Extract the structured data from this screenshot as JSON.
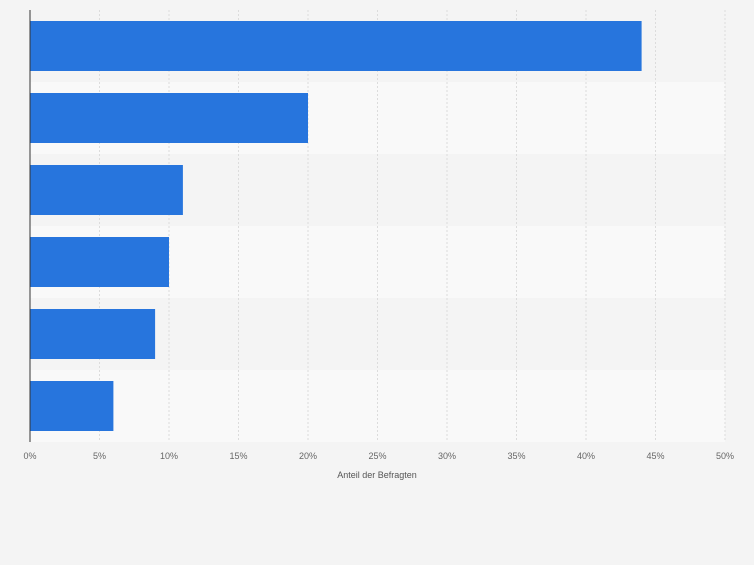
{
  "chart_data": {
    "type": "bar",
    "orientation": "horizontal",
    "categories": [
      "",
      "",
      "",
      "",
      "",
      ""
    ],
    "values": [
      44,
      20,
      11,
      10,
      9,
      6
    ],
    "title": "",
    "xlabel": "Anteil der Befragten",
    "ylabel": "",
    "xlim": [
      0,
      50
    ],
    "x_ticks": [
      0,
      5,
      10,
      15,
      20,
      25,
      30,
      35,
      40,
      45,
      50
    ],
    "x_tick_labels": [
      "0%",
      "5%",
      "10%",
      "15%",
      "20%",
      "25%",
      "30%",
      "35%",
      "40%",
      "45%",
      "50%"
    ],
    "grid": true,
    "legend": "none",
    "colors": {
      "bar": "#2775dd",
      "band_dark": "#f4f4f4",
      "band_light": "#f9f9f9",
      "grid": "#dcdcdc",
      "axis": "#333333",
      "tick_text": "#666666"
    }
  }
}
